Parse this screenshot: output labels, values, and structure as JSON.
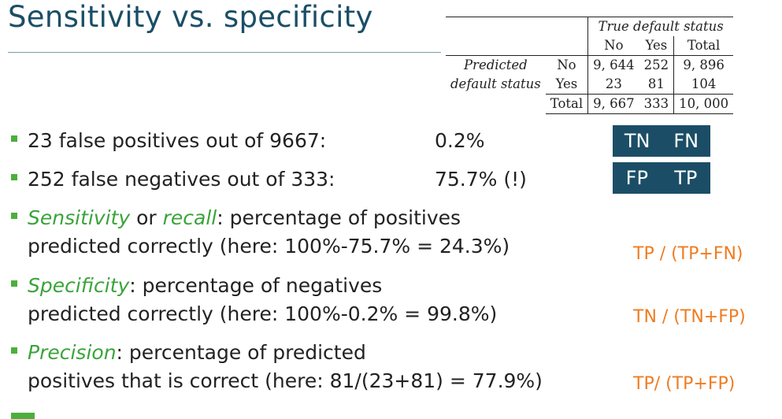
{
  "title": "Sensitivity vs. specificity",
  "table": {
    "header": "True default status",
    "col_no": "No",
    "col_yes": "Yes",
    "col_total": "Total",
    "row_label_1": "Predicted",
    "row_label_2": "default status",
    "rows": [
      {
        "label": "No",
        "no": "9, 644",
        "yes": "252",
        "total": "9, 896"
      },
      {
        "label": "Yes",
        "no": "23",
        "yes": "81",
        "total": "104"
      },
      {
        "label": "Total",
        "no": "9, 667",
        "yes": "333",
        "total": "10, 000"
      }
    ]
  },
  "boxes": {
    "tn": "TN",
    "fn": "FN",
    "fp": "FP",
    "tp": "TP"
  },
  "bullets": [
    {
      "text": "23 false positives out of 9667:",
      "value": "0.2%"
    },
    {
      "text": "252 false negatives out of 333:",
      "value": "75.7% (!)"
    }
  ],
  "definitions": [
    {
      "term": "Sensitivity",
      "connector": " or ",
      "term2": "recall",
      "rest": ": percentage of positives",
      "line2": "predicted correctly (here: 100%-75.7% = 24.3%)",
      "formula": "TP / (TP+FN)"
    },
    {
      "term": "Specificity",
      "rest": ": percentage of negatives",
      "line2": "predicted correctly (here: 100%-0.2% = 99.8%)",
      "formula": "TN / (TN+FP)"
    },
    {
      "term": "Precision",
      "rest": ": percentage of predicted",
      "line2": "positives that is correct (here: 81/(23+81) = 77.9%)",
      "formula": "TP/ (TP+FP)"
    }
  ],
  "colors": {
    "title": "#1b4e66",
    "accent_green": "#3aa43a",
    "formula_orange": "#ee7d22",
    "box_fill": "#1b4e66"
  }
}
